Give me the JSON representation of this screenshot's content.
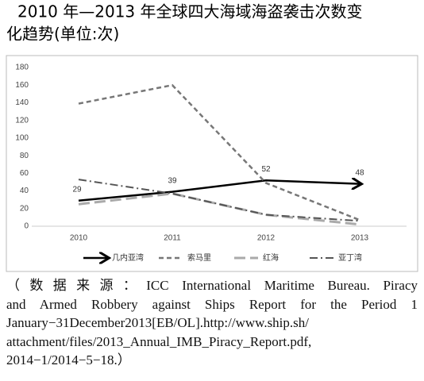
{
  "chart_data": {
    "type": "line",
    "title": [
      "2010 年—2013 年全球四大海域海盗袭击次数变",
      "化趋势(单位:次)"
    ],
    "categories": [
      "2010",
      "2011",
      "2012",
      "2013"
    ],
    "series": [
      {
        "name": "几内亚湾",
        "color": "#000000",
        "style": "arrow",
        "values": [
          29,
          39,
          52,
          48
        ],
        "labels": true
      },
      {
        "name": "索马里",
        "color": "#777777",
        "style": "dashed",
        "values": [
          139,
          160,
          49,
          7
        ]
      },
      {
        "name": "红海",
        "color": "#aaaaaa",
        "style": "long-dash",
        "values": [
          25,
          37,
          13,
          2
        ]
      },
      {
        "name": "亚丁湾",
        "color": "#555555",
        "style": "dash-dot",
        "values": [
          53,
          37,
          13,
          6
        ]
      }
    ],
    "ylim": [
      0,
      180
    ],
    "yticks": [
      0,
      20,
      40,
      60,
      80,
      100,
      120,
      140,
      160,
      180
    ],
    "grid": false
  },
  "source": [
    "（数据来源：ICC International Maritime Bureau. Piracy",
    "and Armed Robbery against Ships Report for the Period 1",
    "January−31December2013[EB/OL].http://www.ship.sh/",
    "attachment/files/2013_Annual_IMB_Piracy_Report.pdf,",
    "2014−1/2014−5−18.）"
  ]
}
